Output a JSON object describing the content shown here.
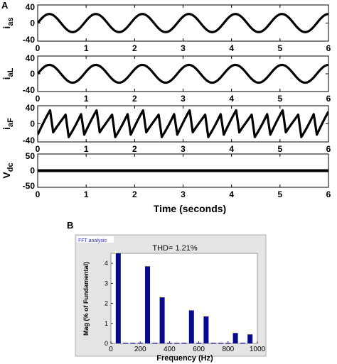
{
  "panel_labels": {
    "a": "A",
    "b": "B"
  },
  "colors": {
    "trace": "#000000",
    "bar": "#0a0a8c",
    "fft_frame": "#e0e0e0",
    "fft_title": "#1a1aff",
    "fft_highlight": "#ffff66"
  },
  "chart_data": [
    {
      "type": "line",
      "ylabel": "i",
      "ylabel_sub": "as",
      "xlim": [
        0,
        6
      ],
      "ylim": [
        -40,
        40
      ],
      "xticks": [
        "0",
        "1",
        "2",
        "3",
        "4",
        "5",
        "6"
      ],
      "yticks": [
        "40",
        "0",
        "-40"
      ],
      "ytick_values": [
        40,
        0,
        -40
      ],
      "signal": {
        "kind": "sine",
        "amplitude": 20,
        "cycles": 6.25,
        "phase": 0
      },
      "series": [
        {
          "values_description_free": true
        }
      ]
    },
    {
      "type": "line",
      "ylabel": "i",
      "ylabel_sub": "aL",
      "xlim": [
        0,
        6
      ],
      "ylim": [
        -40,
        40
      ],
      "xticks": [
        "0",
        "1",
        "2",
        "3",
        "4",
        "5",
        "6"
      ],
      "yticks": [
        "40",
        "0",
        "-40"
      ],
      "ytick_values": [
        40,
        0,
        -40
      ],
      "signal": {
        "kind": "sine",
        "amplitude": 20,
        "cycles": 6.25,
        "phase": 0
      }
    },
    {
      "type": "line",
      "ylabel": "i",
      "ylabel_sub": "aF",
      "xlim": [
        0,
        6
      ],
      "ylim": [
        -40,
        40
      ],
      "xticks": [
        "0",
        "1",
        "2",
        "3",
        "4",
        "5",
        "6"
      ],
      "yticks": [
        "40",
        "0",
        "-40"
      ],
      "ytick_values": [
        40,
        0,
        -40
      ],
      "signal": {
        "kind": "sawtooth",
        "amplitude": 24,
        "cycles": 18.75,
        "phase": 0
      }
    },
    {
      "type": "line",
      "ylabel": "V",
      "ylabel_sub": "dc",
      "xlabel": "Time (seconds)",
      "xlim": [
        0,
        6
      ],
      "ylim": [
        -50,
        50
      ],
      "xticks": [
        "0",
        "1",
        "2",
        "3",
        "4",
        "5",
        "6"
      ],
      "yticks": [
        "50",
        "0",
        "-50"
      ],
      "ytick_values": [
        50,
        0,
        -50
      ],
      "signal": {
        "kind": "constant",
        "value": 0
      }
    },
    {
      "type": "bar",
      "window_title": "FFT analysis",
      "title": "THD= 1.21%",
      "xlabel": "Frequency (Hz)",
      "ylabel": "Mag (% of Fundamental)",
      "xlim": [
        0,
        1000
      ],
      "ylim": [
        0,
        4.5
      ],
      "xticks": [
        "0",
        "200",
        "400",
        "600",
        "800",
        "1000"
      ],
      "xtick_values": [
        0,
        200,
        400,
        600,
        800,
        1000
      ],
      "yticks": [
        "0",
        "1",
        "2",
        "3",
        "4"
      ],
      "ytick_values": [
        0,
        1,
        2,
        3,
        4
      ],
      "x": [
        50,
        100,
        150,
        200,
        250,
        300,
        350,
        400,
        450,
        500,
        550,
        600,
        650,
        700,
        750,
        800,
        850,
        900,
        950
      ],
      "values": [
        4.6,
        0.03,
        0.03,
        0.03,
        3.85,
        0.03,
        2.3,
        0.03,
        0.03,
        0.03,
        1.65,
        0.03,
        1.35,
        0.03,
        0.03,
        0.03,
        0.52,
        0.03,
        0.45
      ]
    }
  ]
}
